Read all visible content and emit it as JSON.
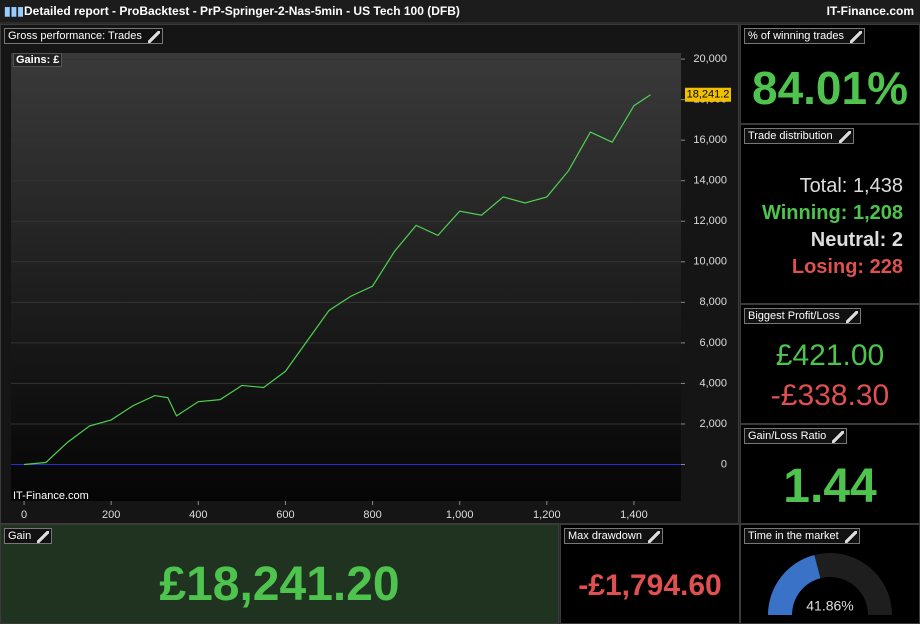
{
  "window": {
    "title": "Detailed report - ProBacktest - PrP-Springer-2-Nas-5min - US Tech 100 (DFB)",
    "brand": "IT-Finance.com"
  },
  "chart_panel": {
    "title": "Gross performance: Trades",
    "watermark": "IT-Finance.com"
  },
  "chart_data": {
    "type": "line",
    "y_label": "Gains: £",
    "color": "#4fd14f",
    "zero_line_color": "#2a2ad8",
    "x": [
      0,
      50,
      100,
      150,
      200,
      250,
      300,
      330,
      350,
      400,
      450,
      500,
      550,
      600,
      650,
      700,
      750,
      800,
      850,
      900,
      950,
      1000,
      1050,
      1100,
      1150,
      1200,
      1250,
      1300,
      1350,
      1400,
      1438
    ],
    "values": [
      0,
      100,
      1100,
      1900,
      2200,
      2900,
      3400,
      3300,
      2400,
      3100,
      3200,
      3900,
      3800,
      4600,
      6100,
      7600,
      8300,
      8800,
      10500,
      11800,
      11300,
      12500,
      12300,
      13200,
      12900,
      13200,
      14500,
      16400,
      15900,
      17700,
      18241.2
    ],
    "last_label": "18,241.2",
    "xlim": [
      -30,
      1508
    ],
    "ylim": [
      -1800,
      20300
    ],
    "xticks": [
      0,
      200,
      400,
      600,
      800,
      {
        "value": 1000,
        "label": "1,000"
      },
      {
        "value": 1200,
        "label": "1,200"
      },
      {
        "value": 1400,
        "label": "1,400"
      }
    ],
    "yticks": [
      0,
      {
        "value": 2000,
        "label": "2,000"
      },
      {
        "value": 4000,
        "label": "4,000"
      },
      {
        "value": 6000,
        "label": "6,000"
      },
      {
        "value": 8000,
        "label": "8,000"
      },
      {
        "value": 10000,
        "label": "10,000"
      },
      {
        "value": 12000,
        "label": "12,000"
      },
      {
        "value": 14000,
        "label": "14,000"
      },
      {
        "value": 16000,
        "label": "16,000"
      },
      {
        "value": 18000,
        "label": "18,000"
      },
      {
        "value": 20000,
        "label": "20,000"
      }
    ],
    "grid": true
  },
  "panels": {
    "winning": {
      "title": "% of winning trades",
      "value": "84.01%"
    },
    "distribution": {
      "title": "Trade distribution",
      "total_label": "Total:",
      "total": "1,438",
      "winning": "Winning: 1,208",
      "neutral": "Neutral: 2",
      "losing": "Losing: 228"
    },
    "biggest": {
      "title": "Biggest Profit/Loss",
      "profit": "£421.00",
      "loss": "-£338.30"
    },
    "ratio": {
      "title": "Gain/Loss Ratio",
      "value": "1.44"
    },
    "gain": {
      "title": "Gain",
      "value": "£18,241.20"
    },
    "drawdown": {
      "title": "Max drawdown",
      "value": "-£1,794.60"
    },
    "time": {
      "title": "Time in the market",
      "value": 41.86,
      "label": "41.86%"
    }
  }
}
